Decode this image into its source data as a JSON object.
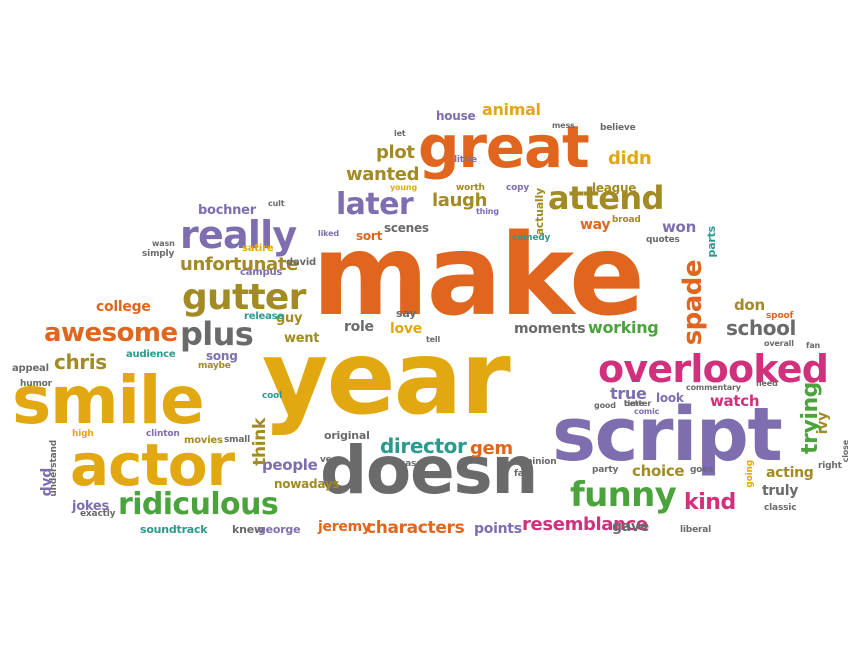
{
  "palette": {
    "orange": "#e0661f",
    "gold": "#e2a811",
    "olive": "#a28a24",
    "purple": "#7e6eb0",
    "gray": "#6a6a6a",
    "green": "#4aa33b",
    "teal": "#2a9a8e",
    "magenta": "#d0307c"
  },
  "words": [
    {
      "text": "make",
      "color": "orange"
    },
    {
      "text": "year",
      "color": "gold"
    },
    {
      "text": "great",
      "color": "orange"
    },
    {
      "text": "script",
      "color": "purple"
    },
    {
      "text": "doesn",
      "color": "gray"
    },
    {
      "text": "smile",
      "color": "gold"
    },
    {
      "text": "actor",
      "color": "gold"
    },
    {
      "text": "overlooked",
      "color": "magenta"
    },
    {
      "text": "really",
      "color": "purple"
    },
    {
      "text": "gutter",
      "color": "olive"
    },
    {
      "text": "ridiculous",
      "color": "green"
    },
    {
      "text": "funny",
      "color": "green"
    },
    {
      "text": "attend",
      "color": "olive"
    },
    {
      "text": "later",
      "color": "purple"
    },
    {
      "text": "plus",
      "color": "gray"
    },
    {
      "text": "awesome",
      "color": "orange"
    },
    {
      "text": "spade",
      "color": "orange"
    },
    {
      "text": "director",
      "color": "teal"
    },
    {
      "text": "school",
      "color": "gray"
    },
    {
      "text": "chris",
      "color": "olive"
    },
    {
      "text": "resemblance",
      "color": "magenta"
    },
    {
      "text": "kind",
      "color": "magenta"
    },
    {
      "text": "trying",
      "color": "green"
    },
    {
      "text": "unfortunate",
      "color": "olive"
    },
    {
      "text": "laugh",
      "color": "olive"
    },
    {
      "text": "characters",
      "color": "orange"
    },
    {
      "text": "animal",
      "color": "gold"
    },
    {
      "text": "plot",
      "color": "olive"
    },
    {
      "text": "wanted",
      "color": "olive"
    },
    {
      "text": "didn",
      "color": "gold"
    },
    {
      "text": "gem",
      "color": "orange"
    },
    {
      "text": "working",
      "color": "green"
    },
    {
      "text": "moments",
      "color": "gray"
    },
    {
      "text": "choice",
      "color": "olive"
    },
    {
      "text": "acting",
      "color": "olive"
    },
    {
      "text": "truly",
      "color": "gray"
    },
    {
      "text": "true",
      "color": "purple"
    },
    {
      "text": "watch",
      "color": "magenta"
    },
    {
      "text": "people",
      "color": "purple"
    },
    {
      "text": "think",
      "color": "olive"
    },
    {
      "text": "college",
      "color": "orange"
    },
    {
      "text": "role",
      "color": "gray"
    },
    {
      "text": "love",
      "color": "gold"
    },
    {
      "text": "went",
      "color": "olive"
    },
    {
      "text": "guy",
      "color": "olive"
    },
    {
      "text": "won",
      "color": "purple"
    },
    {
      "text": "don",
      "color": "olive"
    },
    {
      "text": "way",
      "color": "orange"
    },
    {
      "text": "ivy",
      "color": "olive"
    },
    {
      "text": "dvd",
      "color": "purple"
    },
    {
      "text": "jeremy",
      "color": "orange"
    },
    {
      "text": "points",
      "color": "purple"
    },
    {
      "text": "gave",
      "color": "gray"
    },
    {
      "text": "bochner",
      "color": "purple"
    },
    {
      "text": "jokes",
      "color": "purple"
    },
    {
      "text": "house",
      "color": "purple"
    },
    {
      "text": "song",
      "color": "purple"
    },
    {
      "text": "scenes",
      "color": "gray"
    },
    {
      "text": "sort",
      "color": "orange"
    },
    {
      "text": "league",
      "color": "olive"
    },
    {
      "text": "look",
      "color": "purple"
    },
    {
      "text": "parts",
      "color": "teal"
    },
    {
      "text": "actually",
      "color": "olive"
    },
    {
      "text": "original",
      "color": "gray"
    },
    {
      "text": "say",
      "color": "gray"
    },
    {
      "text": "soundtrack",
      "color": "teal"
    },
    {
      "text": "knew",
      "color": "gray"
    },
    {
      "text": "george",
      "color": "purple"
    },
    {
      "text": "nowadays",
      "color": "olive"
    },
    {
      "text": "movies",
      "color": "olive"
    },
    {
      "text": "campus",
      "color": "purple"
    },
    {
      "text": "simply",
      "color": "gray"
    },
    {
      "text": "satire",
      "color": "gold"
    },
    {
      "text": "david",
      "color": "gray"
    },
    {
      "text": "release",
      "color": "teal"
    },
    {
      "text": "audience",
      "color": "teal"
    },
    {
      "text": "maybe",
      "color": "olive"
    },
    {
      "text": "appeal",
      "color": "gray"
    },
    {
      "text": "humor",
      "color": "gray"
    },
    {
      "text": "cool",
      "color": "teal"
    },
    {
      "text": "high",
      "color": "gold"
    },
    {
      "text": "clinton",
      "color": "purple"
    },
    {
      "text": "small",
      "color": "gray"
    },
    {
      "text": "understand",
      "color": "gray"
    },
    {
      "text": "exactly",
      "color": "gray"
    },
    {
      "text": "ve",
      "color": "gray"
    },
    {
      "text": "case",
      "color": "gray"
    },
    {
      "text": "opinion",
      "color": "gray"
    },
    {
      "text": "fact",
      "color": "gray"
    },
    {
      "text": "party",
      "color": "gray"
    },
    {
      "text": "goes",
      "color": "gray"
    },
    {
      "text": "going",
      "color": "gold"
    },
    {
      "text": "classic",
      "color": "gray"
    },
    {
      "text": "liberal",
      "color": "gray"
    },
    {
      "text": "right",
      "color": "gray"
    },
    {
      "text": "close",
      "color": "gray"
    },
    {
      "text": "fan",
      "color": "gray"
    },
    {
      "text": "need",
      "color": "gray"
    },
    {
      "text": "spoof",
      "color": "orange"
    },
    {
      "text": "overall",
      "color": "gray"
    },
    {
      "text": "commentary",
      "color": "gray"
    },
    {
      "text": "good",
      "color": "gray"
    },
    {
      "text": "time",
      "color": "gray"
    },
    {
      "text": "better",
      "color": "gray"
    },
    {
      "text": "believe",
      "color": "gray"
    },
    {
      "text": "comic",
      "color": "purple"
    },
    {
      "text": "mess",
      "color": "gray"
    },
    {
      "text": "little",
      "color": "purple"
    },
    {
      "text": "worth",
      "color": "olive"
    },
    {
      "text": "copy",
      "color": "purple"
    },
    {
      "text": "thing",
      "color": "purple"
    },
    {
      "text": "comedy",
      "color": "teal"
    },
    {
      "text": "broad",
      "color": "olive"
    },
    {
      "text": "quotes",
      "color": "gray"
    },
    {
      "text": "young",
      "color": "gold"
    },
    {
      "text": "cult",
      "color": "gray"
    },
    {
      "text": "wasn",
      "color": "gray"
    },
    {
      "text": "liked",
      "color": "purple"
    },
    {
      "text": "let",
      "color": "gray"
    },
    {
      "text": "tell",
      "color": "gray"
    }
  ]
}
